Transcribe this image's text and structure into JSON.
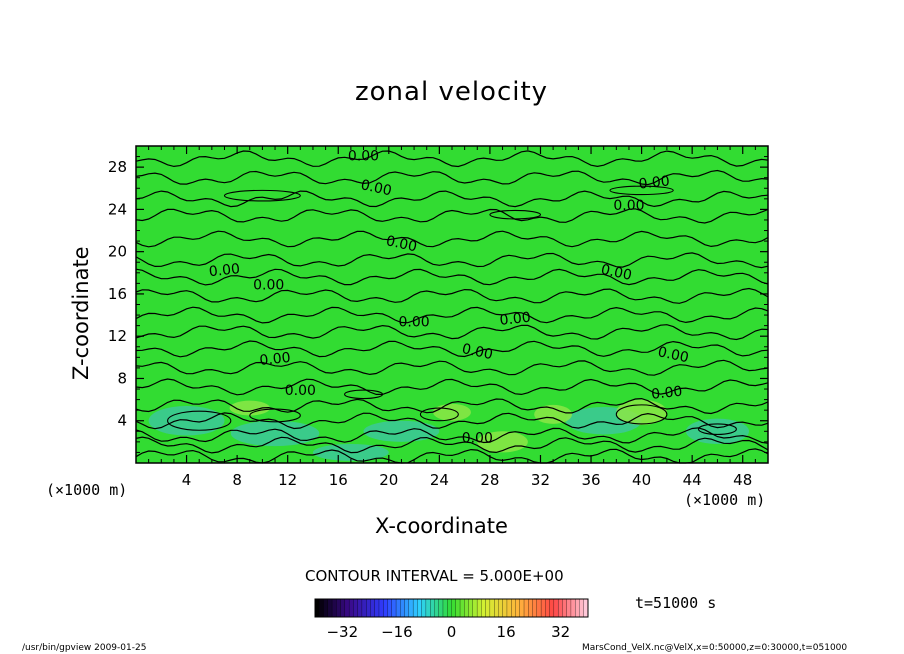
{
  "chart_data": {
    "type": "heatmap",
    "title": "zonal velocity",
    "xlabel": "X-coordinate",
    "ylabel": "Z-coordinate",
    "x_unit": "(×1000 m)",
    "z_unit": "(×1000 m)",
    "xlim": [
      0,
      50
    ],
    "ylim": [
      0,
      30
    ],
    "x_ticks": [
      "4",
      "8",
      "12",
      "16",
      "20",
      "24",
      "28",
      "32",
      "36",
      "40",
      "44",
      "48"
    ],
    "y_ticks": [
      "4",
      "8",
      "12",
      "16",
      "20",
      "24",
      "28"
    ],
    "contour_labels": [
      "0.00",
      "0.00",
      "0.00",
      "0.00",
      "0.00",
      "0.00",
      "0.00",
      "0.00",
      "0.00",
      "0.00",
      "0.00",
      "0.00",
      "0.00",
      "0.00",
      "0.00",
      "0.00"
    ],
    "contour_interval_text": "CONTOUR INTERVAL = 5.000E+00",
    "time_text": "t=51000 s",
    "colorbar": {
      "range": [
        -40,
        40
      ],
      "ticks": [
        "−32",
        "−16",
        "0",
        "16",
        "32"
      ],
      "tick_values": [
        -32,
        -16,
        0,
        16,
        32
      ]
    },
    "colors": {
      "background_field": "#32dc32",
      "cool_patch": "#3cc89a",
      "warm_patch": "#8ce646"
    }
  },
  "footer": {
    "left": "/usr/bin/gpview  2009-01-25",
    "right": "MarsCond_VelX.nc@VelX,x=0:50000,z=0:30000,t=051000"
  }
}
